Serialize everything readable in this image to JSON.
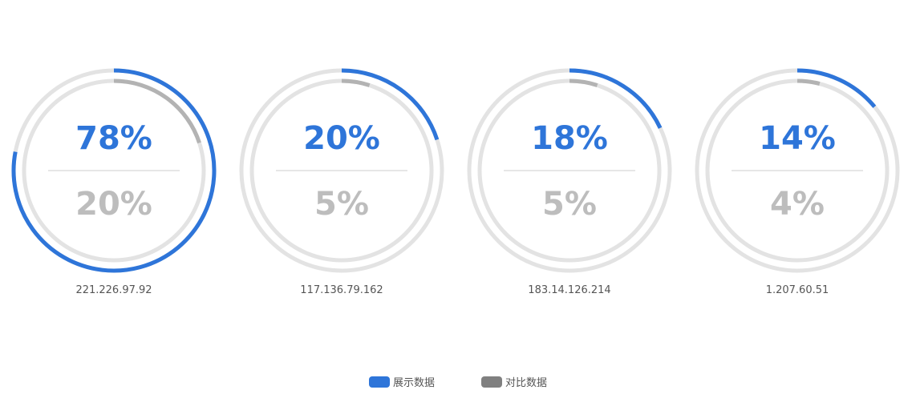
{
  "colors": {
    "primary": "#2e75d9",
    "secondary": "#b3b3b3",
    "secondary_text": "#bdbdbd",
    "track": "#e3e3e3",
    "divider": "#dedede",
    "label": "#555555"
  },
  "chart_data": {
    "type": "gauge",
    "series": [
      {
        "name": "展示数据",
        "color": "#2e75d9"
      },
      {
        "name": "对比数据",
        "color": "#808080"
      }
    ],
    "gauges": [
      {
        "label": "221.226.97.92",
        "primary_value": 78,
        "primary_text": "78%",
        "secondary_value": 20,
        "secondary_text": "20%"
      },
      {
        "label": "117.136.79.162",
        "primary_value": 20,
        "primary_text": "20%",
        "secondary_value": 5,
        "secondary_text": "5%"
      },
      {
        "label": "183.14.126.214",
        "primary_value": 18,
        "primary_text": "18%",
        "secondary_value": 5,
        "secondary_text": "5%"
      },
      {
        "label": "1.207.60.51",
        "primary_value": 14,
        "primary_text": "14%",
        "secondary_value": 4,
        "secondary_text": "4%"
      }
    ]
  },
  "legend": {
    "items": [
      {
        "label": "展示数据",
        "color": "#2e75d9"
      },
      {
        "label": "对比数据",
        "color": "#808080"
      }
    ]
  }
}
